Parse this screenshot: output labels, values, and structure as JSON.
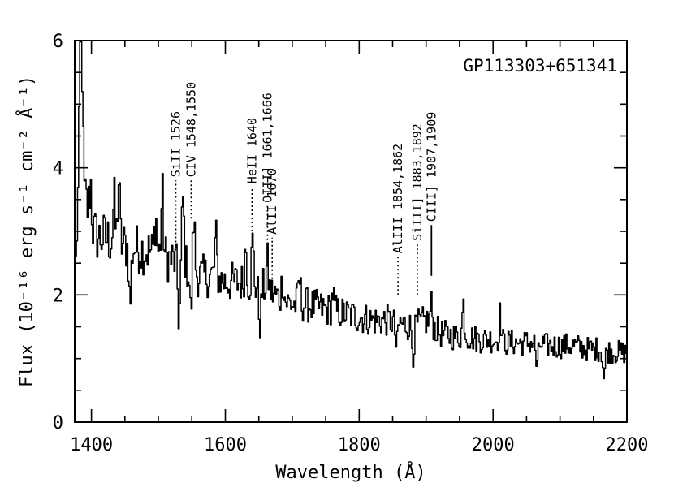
{
  "chart_data": {
    "type": "line",
    "title": "GP113303+651341",
    "xlabel": "Wavelength (Å)",
    "ylabel": "Flux (10⁻¹⁶ erg s⁻¹ cm⁻² Å⁻¹)",
    "xlim": [
      1375,
      2200
    ],
    "ylim": [
      0,
      6
    ],
    "xticks": [
      1400,
      1600,
      1800,
      2000,
      2200
    ],
    "xtick_labels": [
      "1400",
      "1600",
      "1800",
      "2000",
      "2200"
    ],
    "yticks": [
      0,
      2,
      4,
      6
    ],
    "ytick_labels": [
      "0",
      "2",
      "4",
      "6"
    ],
    "series": [
      {
        "name": "GP113303+651341 spectrum",
        "anchors": [
          [
            1376,
            2.5
          ],
          [
            1380,
            3.8
          ],
          [
            1384,
            5.5
          ],
          [
            1388,
            3.6
          ],
          [
            1395,
            3.3
          ],
          [
            1402,
            3.0
          ],
          [
            1410,
            2.9
          ],
          [
            1420,
            2.9
          ],
          [
            1440,
            2.8
          ],
          [
            1460,
            2.75
          ],
          [
            1480,
            2.7
          ],
          [
            1500,
            2.65
          ],
          [
            1520,
            2.55
          ],
          [
            1540,
            2.45
          ],
          [
            1560,
            2.3
          ],
          [
            1580,
            2.3
          ],
          [
            1600,
            2.2
          ],
          [
            1620,
            2.2
          ],
          [
            1640,
            2.15
          ],
          [
            1660,
            2.1
          ],
          [
            1680,
            1.95
          ],
          [
            1700,
            1.85
          ],
          [
            1720,
            1.85
          ],
          [
            1740,
            1.8
          ],
          [
            1760,
            1.75
          ],
          [
            1780,
            1.7
          ],
          [
            1800,
            1.65
          ],
          [
            1820,
            1.6
          ],
          [
            1840,
            1.6
          ],
          [
            1860,
            1.55
          ],
          [
            1880,
            1.5
          ],
          [
            1900,
            1.6
          ],
          [
            1920,
            1.4
          ],
          [
            1940,
            1.35
          ],
          [
            1960,
            1.35
          ],
          [
            1980,
            1.3
          ],
          [
            2000,
            1.3
          ],
          [
            2020,
            1.25
          ],
          [
            2040,
            1.25
          ],
          [
            2060,
            1.25
          ],
          [
            2080,
            1.2
          ],
          [
            2100,
            1.2
          ],
          [
            2120,
            1.2
          ],
          [
            2140,
            1.15
          ],
          [
            2160,
            1.15
          ],
          [
            2180,
            1.1
          ],
          [
            2200,
            1.1
          ]
        ],
        "features": [
          [
            1384,
            1.6
          ],
          [
            1398,
            0.6
          ],
          [
            1433,
            0.6
          ],
          [
            1440,
            1.0
          ],
          [
            1457,
            -0.9
          ],
          [
            1495,
            0.6
          ],
          [
            1505,
            0.9
          ],
          [
            1530,
            -0.9
          ],
          [
            1536,
            1.0
          ],
          [
            1548,
            -0.7
          ],
          [
            1552,
            0.9
          ],
          [
            1585,
            0.6
          ],
          [
            1630,
            0.6
          ],
          [
            1640,
            0.65
          ],
          [
            1651,
            -0.6
          ],
          [
            1662,
            0.4
          ],
          [
            1685,
            0.35
          ],
          [
            1710,
            0.4
          ],
          [
            1760,
            0.3
          ],
          [
            1855,
            -0.4
          ],
          [
            1880,
            -0.45
          ],
          [
            1907,
            0.3
          ],
          [
            1955,
            0.5
          ],
          [
            2010,
            0.4
          ],
          [
            2065,
            -0.4
          ],
          [
            2165,
            -0.45
          ]
        ]
      }
    ],
    "annotations": [
      {
        "text": "SiII 1526",
        "wavelength": 1526,
        "style": "dotted",
        "y_from": 2.7,
        "y_to": 3.8
      },
      {
        "text": "CIV 1548,1550",
        "wavelength": 1549,
        "style": "dotted",
        "y_from": 3.2,
        "y_to": 3.8
      },
      {
        "text": "HeII 1640",
        "wavelength": 1640,
        "style": "dotted",
        "y_from": 3.0,
        "y_to": 3.7
      },
      {
        "text": "OIII] 1661,1666",
        "wavelength": 1663,
        "style": "dotted",
        "y_from": 2.8,
        "y_to": 3.4
      },
      {
        "text": "AlII 1670",
        "wavelength": 1670,
        "style": "dotted",
        "y_from": 2.25,
        "y_to": 2.9
      },
      {
        "text": "AlIII 1854,1862",
        "wavelength": 1858,
        "style": "dotted",
        "y_from": 2.0,
        "y_to": 2.6
      },
      {
        "text": "SiIII] 1883,1892",
        "wavelength": 1887,
        "style": "dotted",
        "y_from": 2.0,
        "y_to": 2.8
      },
      {
        "text": "CIII] 1907,1909",
        "wavelength": 1908,
        "style": "solid",
        "y_from": 2.3,
        "y_to": 3.1
      }
    ]
  }
}
